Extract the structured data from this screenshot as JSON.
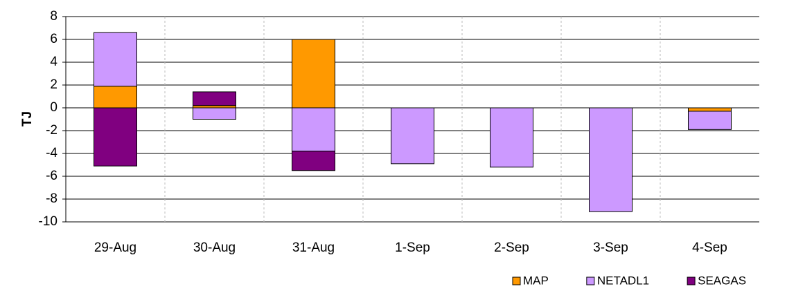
{
  "chart_data": {
    "type": "stacked_bar",
    "y_label": "TJ",
    "categories": [
      "29-Aug",
      "30-Aug",
      "31-Aug",
      "1-Sep",
      "2-Sep",
      "3-Sep",
      "4-Sep"
    ],
    "series": [
      {
        "name": "MAP",
        "color": "#ff9900",
        "values": [
          1.9,
          0.2,
          6.0,
          0,
          0,
          0,
          -0.3
        ]
      },
      {
        "name": "NETADL1",
        "color": "#cc99ff",
        "values": [
          4.7,
          -1.0,
          -3.8,
          -4.9,
          -5.2,
          -9.1,
          -1.6
        ]
      },
      {
        "name": "SEAGAS",
        "color": "#800080",
        "values": [
          -5.1,
          1.2,
          -1.7,
          0,
          0,
          0,
          0
        ]
      }
    ],
    "ylim": [
      -10,
      8
    ],
    "yticks": [
      -10,
      -8,
      -6,
      -4,
      -2,
      0,
      2,
      4,
      6,
      8
    ],
    "grid": true,
    "legend": "bottom-right"
  }
}
